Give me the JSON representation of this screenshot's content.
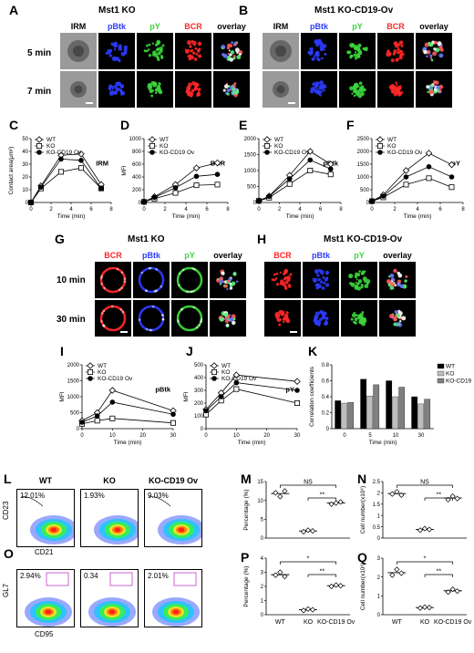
{
  "panels": {
    "A": {
      "letter": "A",
      "title": "Mst1  KO",
      "rows": [
        "5 min",
        "7 min"
      ]
    },
    "B": {
      "letter": "B",
      "title": "Mst1  KO-CD19-Ov"
    },
    "G": {
      "letter": "G",
      "title": "Mst1  KO",
      "rows": [
        "10 min",
        "30 min"
      ]
    },
    "H": {
      "letter": "H",
      "title": "Mst1  KO-CD19-Ov"
    },
    "channels_top": [
      "IRM",
      "pBtk",
      "pY",
      "BCR",
      "overlay"
    ],
    "channels_mid": [
      "BCR",
      "pBtk",
      "pY",
      "overlay"
    ]
  },
  "chart_data": [
    {
      "id": "C",
      "type": "line",
      "title": "IRM",
      "xlabel": "Time (min)",
      "ylabel": "Contact area(μm²)",
      "xlim": [
        0,
        8
      ],
      "ylim": [
        0,
        50
      ],
      "xticks": [
        0,
        2,
        4,
        6,
        8
      ],
      "yticks": [
        0,
        10,
        20,
        30,
        40,
        50
      ],
      "x": [
        0,
        1,
        3,
        5,
        7
      ],
      "series": [
        {
          "name": "WT",
          "values": [
            0,
            13,
            37,
            38,
            14
          ]
        },
        {
          "name": "KO",
          "values": [
            0,
            11,
            24,
            27,
            11
          ]
        },
        {
          "name": "KO-CD19 Ov",
          "values": [
            0,
            12,
            34,
            33,
            11
          ]
        }
      ]
    },
    {
      "id": "D",
      "type": "line",
      "title": "BCR",
      "xlabel": "Time (min)",
      "ylabel": "MFI",
      "xlim": [
        0,
        8
      ],
      "ylim": [
        0,
        1000
      ],
      "xticks": [
        0,
        2,
        4,
        6,
        8
      ],
      "yticks": [
        0,
        200,
        400,
        600,
        800,
        1000
      ],
      "x": [
        0,
        1,
        3,
        5,
        7
      ],
      "series": [
        {
          "name": "WT",
          "values": [
            10,
            90,
            280,
            540,
            620
          ]
        },
        {
          "name": "KO",
          "values": [
            10,
            60,
            150,
            270,
            280
          ]
        },
        {
          "name": "KO-CD19 Ov",
          "values": [
            10,
            80,
            230,
            410,
            440
          ]
        }
      ]
    },
    {
      "id": "E",
      "type": "line",
      "title": "pBtk",
      "xlabel": "Time (min)",
      "ylabel": "",
      "xlim": [
        0,
        8
      ],
      "ylim": [
        0,
        2000
      ],
      "xticks": [
        0,
        2,
        4,
        6,
        8
      ],
      "yticks": [
        0,
        500,
        1000,
        1500,
        2000
      ],
      "x": [
        0,
        1,
        3,
        5,
        7
      ],
      "series": [
        {
          "name": "WT",
          "values": [
            50,
            200,
            850,
            1600,
            1200
          ]
        },
        {
          "name": "KO",
          "values": [
            50,
            150,
            580,
            1000,
            880
          ]
        },
        {
          "name": "KO-CD19 Ov",
          "values": [
            50,
            190,
            740,
            1330,
            1050
          ]
        }
      ]
    },
    {
      "id": "F",
      "type": "line",
      "title": "pY",
      "xlabel": "Time (min)",
      "ylabel": "",
      "xlim": [
        0,
        8
      ],
      "ylim": [
        0,
        2500
      ],
      "xticks": [
        0,
        2,
        4,
        6,
        8
      ],
      "yticks": [
        0,
        500,
        1000,
        1500,
        2000,
        2500
      ],
      "x": [
        0,
        1,
        3,
        5,
        7
      ],
      "series": [
        {
          "name": "WT",
          "values": [
            50,
            300,
            1250,
            1930,
            1480
          ]
        },
        {
          "name": "KO",
          "values": [
            50,
            200,
            700,
            950,
            600
          ]
        },
        {
          "name": "KO-CD19 Ov",
          "values": [
            50,
            250,
            1000,
            1400,
            1000
          ]
        }
      ]
    },
    {
      "id": "I",
      "type": "line",
      "title": "pBtk",
      "xlabel": "Time (min)",
      "ylabel": "MFI",
      "xlim": [
        0,
        30
      ],
      "ylim": [
        0,
        2000
      ],
      "xticks": [
        0,
        10,
        20,
        30
      ],
      "yticks": [
        0,
        500,
        1000,
        1500,
        2000
      ],
      "x": [
        0,
        5,
        10,
        30
      ],
      "series": [
        {
          "name": "WT",
          "values": [
            250,
            500,
            1200,
            560
          ]
        },
        {
          "name": "KO",
          "values": [
            150,
            250,
            320,
            180
          ]
        },
        {
          "name": "KO-CD19 Ov",
          "values": [
            200,
            400,
            830,
            450
          ]
        }
      ]
    },
    {
      "id": "J",
      "type": "line",
      "title": "pY",
      "xlabel": "Time (min)",
      "ylabel": "MFI",
      "xlim": [
        0,
        30
      ],
      "ylim": [
        0,
        500
      ],
      "xticks": [
        0,
        10,
        20,
        30
      ],
      "yticks": [
        0,
        100,
        200,
        300,
        400,
        500
      ],
      "x": [
        0,
        5,
        10,
        30
      ],
      "series": [
        {
          "name": "WT",
          "values": [
            150,
            280,
            420,
            370
          ]
        },
        {
          "name": "KO",
          "values": [
            110,
            220,
            310,
            200
          ]
        },
        {
          "name": "KO-CD19 Ov",
          "values": [
            140,
            250,
            360,
            300
          ]
        }
      ]
    },
    {
      "id": "K",
      "type": "bar",
      "title": "",
      "xlabel": "Time (min)",
      "ylabel": "Correlation coefficients",
      "ylim": [
        0,
        0.8
      ],
      "yticks": [
        0,
        0.2,
        0.4,
        0.6,
        0.8
      ],
      "categories": [
        "0",
        "5",
        "10",
        "30"
      ],
      "series": [
        {
          "name": "WT",
          "color": "#000000",
          "values": [
            0.35,
            0.62,
            0.6,
            0.4
          ]
        },
        {
          "name": "KO",
          "color": "#bdbdbd",
          "values": [
            0.32,
            0.41,
            0.4,
            0.31
          ]
        },
        {
          "name": "KO-CD19 Ov",
          "color": "#808080",
          "values": [
            0.33,
            0.55,
            0.52,
            0.37
          ]
        }
      ]
    },
    {
      "id": "M",
      "type": "scatter",
      "title": "",
      "ylabel": "Percentage (%)",
      "ylim": [
        0,
        15
      ],
      "yticks": [
        0,
        5,
        10,
        15
      ],
      "categories": [
        "WT",
        "KO",
        "KO-CD19 Ov"
      ],
      "points": [
        [
          12.0,
          11.0,
          12.5
        ],
        [
          1.7,
          2.1,
          1.9
        ],
        [
          9.0,
          9.3,
          9.6
        ]
      ],
      "means": [
        11.8,
        1.9,
        9.3
      ],
      "sig": [
        {
          "from": 0,
          "to": 2,
          "label": "NS"
        },
        {
          "from": 1,
          "to": 2,
          "label": "**"
        }
      ]
    },
    {
      "id": "N",
      "type": "scatter",
      "title": "",
      "ylabel": "Cell number(x10⁶)",
      "ylim": [
        0,
        2.5
      ],
      "yticks": [
        0,
        0.5,
        1.0,
        1.5,
        2.0,
        2.5
      ],
      "categories": [
        "WT",
        "KO",
        "KO-CD19 Ov"
      ],
      "points": [
        [
          1.95,
          2.05,
          1.9
        ],
        [
          0.35,
          0.42,
          0.38
        ],
        [
          1.7,
          1.85,
          1.75
        ]
      ],
      "means": [
        1.97,
        0.38,
        1.77
      ],
      "sig": [
        {
          "from": 0,
          "to": 2,
          "label": "NS"
        },
        {
          "from": 1,
          "to": 2,
          "label": "**"
        }
      ]
    },
    {
      "id": "P",
      "type": "scatter",
      "title": "",
      "ylabel": "Percentage (%)",
      "ylim": [
        0,
        4
      ],
      "yticks": [
        0,
        1,
        2,
        3,
        4
      ],
      "categories": [
        "WT",
        "KO",
        "KO-CD19 Ov"
      ],
      "points": [
        [
          2.8,
          3.0,
          2.7
        ],
        [
          0.3,
          0.4,
          0.35
        ],
        [
          2.0,
          2.1,
          2.05
        ]
      ],
      "means": [
        2.83,
        0.35,
        2.05
      ],
      "sig": [
        {
          "from": 0,
          "to": 2,
          "label": "*"
        },
        {
          "from": 1,
          "to": 2,
          "label": "**"
        }
      ]
    },
    {
      "id": "Q",
      "type": "scatter",
      "title": "",
      "ylabel": "Cell number(x10⁶)",
      "ylim": [
        0,
        3
      ],
      "yticks": [
        0,
        1,
        2,
        3
      ],
      "categories": [
        "WT",
        "KO",
        "KO-CD19 Ov"
      ],
      "points": [
        [
          2.1,
          2.4,
          2.2
        ],
        [
          0.35,
          0.4,
          0.38
        ],
        [
          1.2,
          1.35,
          1.25
        ]
      ],
      "means": [
        2.23,
        0.38,
        1.27
      ],
      "sig": [
        {
          "from": 0,
          "to": 2,
          "label": "*"
        },
        {
          "from": 1,
          "to": 2,
          "label": "**"
        }
      ]
    }
  ],
  "flow": {
    "L": {
      "letter": "L",
      "groups": [
        "WT",
        "KO",
        "KO-CD19 Ov"
      ],
      "pcts": [
        "12.01%",
        "1.93%",
        "9.03%"
      ],
      "xlabel": "CD21",
      "ylabel": "CD23"
    },
    "O": {
      "letter": "O",
      "pcts": [
        "2.94%",
        "0.34",
        "2.01%"
      ],
      "xlabel": "CD95",
      "ylabel": "GL7"
    }
  },
  "letters": {
    "C": "C",
    "D": "D",
    "E": "E",
    "F": "F",
    "I": "I",
    "J": "J",
    "K": "K",
    "M": "M",
    "N": "N",
    "P": "P",
    "Q": "Q"
  }
}
